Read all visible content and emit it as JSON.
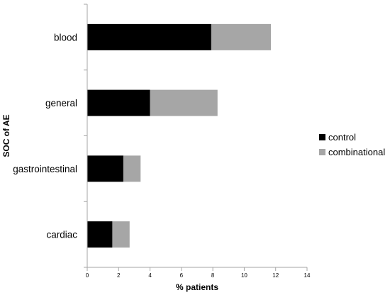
{
  "chart_data": {
    "type": "bar",
    "orientation": "horizontal",
    "stacked": true,
    "categories": [
      "blood",
      "general",
      "gastrointestinal",
      "cardiac"
    ],
    "series": [
      {
        "name": "control",
        "values": [
          7.9,
          4.0,
          2.3,
          1.6
        ],
        "color": "#000000"
      },
      {
        "name": "combinational",
        "values": [
          3.8,
          4.3,
          1.1,
          1.1
        ],
        "color": "#a6a6a6"
      }
    ],
    "xlabel": "% patients",
    "ylabel": "SOC of AE",
    "xlim": [
      0,
      14
    ],
    "xticks": [
      0,
      2,
      4,
      6,
      8,
      10,
      12,
      14
    ],
    "xtick_labels": [
      "0",
      "2",
      "4",
      "6",
      "8",
      "10",
      "12",
      "14"
    ],
    "grid": false,
    "legend_position": "right"
  }
}
